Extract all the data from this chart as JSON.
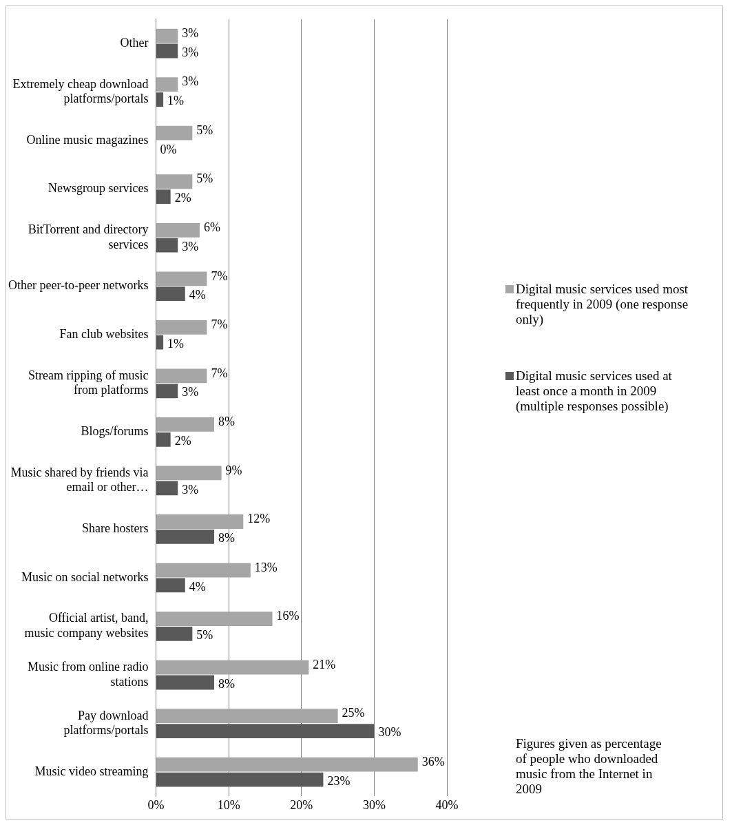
{
  "chart_data": {
    "type": "bar",
    "orientation": "horizontal",
    "categories": [
      "Other",
      "Extremely cheap download platforms/portals",
      "Online music magazines",
      "Newsgroup services",
      "BitTorrent and directory services",
      "Other peer-to-peer networks",
      "Fan club websites",
      "Stream ripping of music from platforms",
      "Blogs/forums",
      "Music shared by friends via email or other…",
      "Share hosters",
      "Music on social networks",
      "Official artist, band, music company websites",
      "Music from online radio stations",
      "Pay download platforms/portals",
      "Music video streaming"
    ],
    "series": [
      {
        "name": "Digital music services used most frequently in 2009 (one response only)",
        "color": "#a6a6a6",
        "values": [
          3,
          3,
          5,
          5,
          6,
          7,
          7,
          7,
          8,
          9,
          12,
          13,
          16,
          21,
          25,
          36
        ],
        "value_labels": [
          "3%",
          "3%",
          "5%",
          "5%",
          "6%",
          "7%",
          "7%",
          "7%",
          "8%",
          "9%",
          "12%",
          "13%",
          "16%",
          "21%",
          "25%",
          "36%"
        ]
      },
      {
        "name": "Digital music services used at least once a month in 2009 (multiple responses possible)",
        "color": "#595959",
        "values": [
          3,
          1,
          0,
          2,
          3,
          4,
          1,
          3,
          2,
          3,
          8,
          4,
          5,
          8,
          30,
          23
        ],
        "value_labels": [
          "3%",
          "1%",
          "0%",
          "2%",
          "3%",
          "4%",
          "1%",
          "3%",
          "2%",
          "3%",
          "8%",
          "4%",
          "5%",
          "8%",
          "30%",
          "23%"
        ]
      }
    ],
    "xlim": [
      0,
      40
    ],
    "xticks": [
      {
        "value": 0,
        "label": "0%"
      },
      {
        "value": 10,
        "label": "10%"
      },
      {
        "value": 20,
        "label": "20%"
      },
      {
        "value": 30,
        "label": "30%"
      },
      {
        "value": 40,
        "label": "40%"
      }
    ],
    "grid": "x",
    "legend": "right",
    "annotations": [
      "Figures given as percentage of people who downloaded music from the Internet in 2009"
    ]
  }
}
